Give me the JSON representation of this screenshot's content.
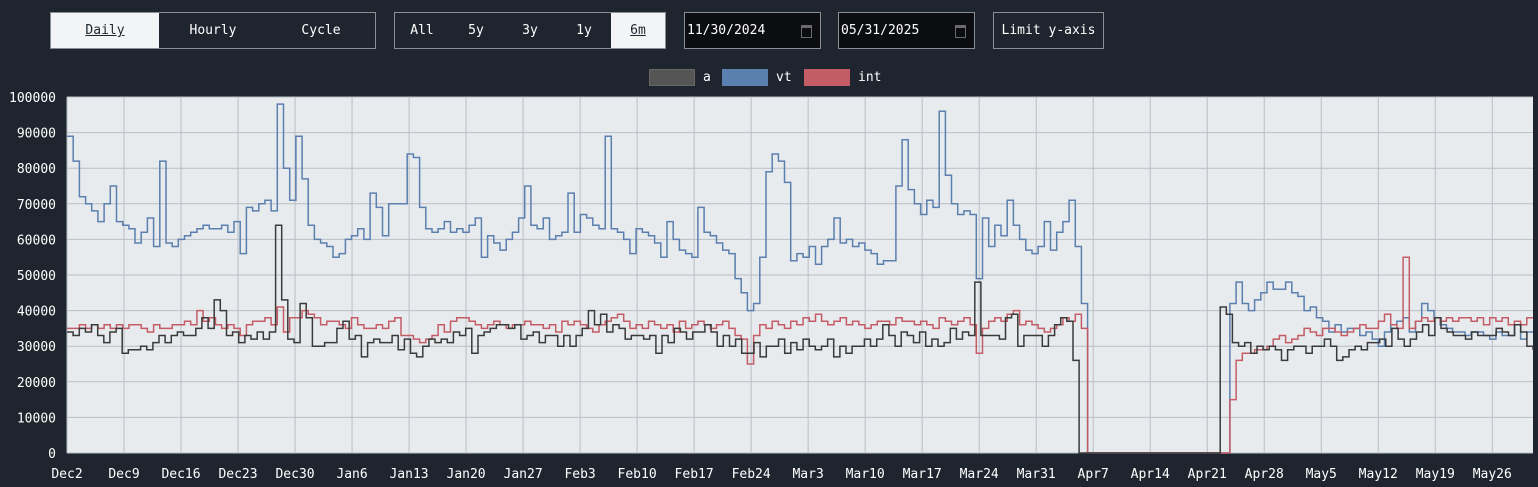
{
  "granularity": {
    "daily": "Daily",
    "hourly": "Hourly",
    "cycle": "Cycle",
    "selected": "Daily"
  },
  "ranges": {
    "all": "All",
    "y5": "5y",
    "y3": "3y",
    "y1": "1y",
    "m6": "6m",
    "selected": "6m"
  },
  "dates": {
    "start": "11/30/2024",
    "end": "05/31/2025"
  },
  "limit_label": "Limit y-axis",
  "colors": {
    "background": "#1e252e",
    "plot": "#e8ebee",
    "a": "#3a3a3a",
    "vt": "#5b7fae",
    "int": "#c45c66"
  },
  "chart_data": {
    "type": "line",
    "step": true,
    "x_start": "2024-12-02",
    "x_end": "2025-05-31",
    "ylim": [
      0,
      100000
    ],
    "yticks": [
      "0",
      "10000",
      "20000",
      "30000",
      "40000",
      "50000",
      "60000",
      "70000",
      "80000",
      "90000",
      "100000"
    ],
    "xticks": [
      {
        "date": "2024-12-02",
        "label": "Dec2"
      },
      {
        "date": "2024-12-09",
        "label": "Dec9"
      },
      {
        "date": "2024-12-16",
        "label": "Dec16"
      },
      {
        "date": "2024-12-23",
        "label": "Dec23"
      },
      {
        "date": "2024-12-30",
        "label": "Dec30"
      },
      {
        "date": "2025-01-06",
        "label": "Jan6"
      },
      {
        "date": "2025-01-13",
        "label": "Jan13"
      },
      {
        "date": "2025-01-20",
        "label": "Jan20"
      },
      {
        "date": "2025-01-27",
        "label": "Jan27"
      },
      {
        "date": "2025-02-03",
        "label": "Feb3"
      },
      {
        "date": "2025-02-10",
        "label": "Feb10"
      },
      {
        "date": "2025-02-17",
        "label": "Feb17"
      },
      {
        "date": "2025-02-24",
        "label": "Feb24"
      },
      {
        "date": "2025-03-03",
        "label": "Mar3"
      },
      {
        "date": "2025-03-10",
        "label": "Mar10"
      },
      {
        "date": "2025-03-17",
        "label": "Mar17"
      },
      {
        "date": "2025-03-24",
        "label": "Mar24"
      },
      {
        "date": "2025-03-31",
        "label": "Mar31"
      },
      {
        "date": "2025-04-07",
        "label": "Apr7"
      },
      {
        "date": "2025-04-14",
        "label": "Apr14"
      },
      {
        "date": "2025-04-21",
        "label": "Apr21"
      },
      {
        "date": "2025-04-28",
        "label": "Apr28"
      },
      {
        "date": "2025-05-05",
        "label": "May5"
      },
      {
        "date": "2025-05-12",
        "label": "May12"
      },
      {
        "date": "2025-05-19",
        "label": "May19"
      },
      {
        "date": "2025-05-26",
        "label": "May26"
      }
    ],
    "series": [
      {
        "name": "a",
        "values": [
          34000,
          33000,
          35000,
          34000,
          36000,
          33000,
          31000,
          34000,
          35000,
          28000,
          29000,
          29000,
          30000,
          29000,
          31000,
          33000,
          31000,
          33000,
          34000,
          33000,
          33000,
          35000,
          38000,
          35000,
          43000,
          40000,
          33000,
          34000,
          31000,
          33000,
          32000,
          34000,
          32000,
          34000,
          64000,
          43000,
          32000,
          31000,
          42000,
          38000,
          30000,
          30000,
          31000,
          31000,
          35000,
          37000,
          32000,
          33000,
          27000,
          31000,
          32000,
          31000,
          31000,
          33000,
          29000,
          32000,
          28000,
          27000,
          30000,
          32000,
          31000,
          32000,
          31000,
          34000,
          33000,
          35000,
          28000,
          33000,
          34000,
          35000,
          36000,
          36000,
          35000,
          36000,
          32000,
          33000,
          34000,
          31000,
          33000,
          33000,
          30000,
          33000,
          30000,
          33000,
          35000,
          40000,
          36000,
          39000,
          34000,
          36000,
          35000,
          32000,
          33000,
          33000,
          32000,
          33000,
          28000,
          33000,
          31000,
          35000,
          34000,
          32000,
          34000,
          34000,
          36000,
          34000,
          30000,
          33000,
          30000,
          32000,
          28000,
          28000,
          31000,
          27000,
          30000,
          30000,
          32000,
          28000,
          31000,
          29000,
          32000,
          30000,
          29000,
          30000,
          32000,
          27000,
          30000,
          28000,
          30000,
          30000,
          32000,
          30000,
          32000,
          36000,
          33000,
          30000,
          34000,
          33000,
          31000,
          34000,
          30000,
          32000,
          30000,
          31000,
          35000,
          32000,
          34000,
          33000,
          48000,
          33000,
          33000,
          33000,
          32000,
          38000,
          39000,
          30000,
          33000,
          33000,
          33000,
          30000,
          33000,
          36000,
          38000,
          37000,
          26000,
          0,
          0,
          0,
          0,
          0,
          0,
          0,
          0,
          0,
          0,
          0,
          0,
          0,
          0,
          0,
          0,
          0,
          0,
          0,
          0,
          0,
          0,
          0,
          41000,
          39000,
          31000,
          30000,
          31000,
          28000,
          30000,
          29000,
          30000,
          29000,
          26000,
          29000,
          30000,
          30000,
          28000,
          30000,
          30000,
          32000,
          30000,
          26000,
          27000,
          29000,
          30000,
          29000,
          31000,
          31000,
          32000,
          30000,
          35000,
          32000,
          30000,
          32000,
          34000,
          36000,
          33000,
          38000,
          35000,
          34000,
          33000,
          33000,
          32000,
          34000,
          33000,
          33000,
          33000,
          35000,
          34000,
          33000,
          36000,
          34000,
          30000,
          29000
        ]
      },
      {
        "name": "vt",
        "values": [
          89000,
          82000,
          72000,
          70000,
          68000,
          65000,
          70000,
          75000,
          65000,
          64000,
          63000,
          59000,
          62000,
          66000,
          58000,
          82000,
          59000,
          58000,
          60000,
          61000,
          62000,
          63000,
          64000,
          63000,
          63000,
          64000,
          62000,
          65000,
          56000,
          69000,
          68000,
          70000,
          71000,
          68000,
          98000,
          80000,
          71000,
          89000,
          77000,
          64000,
          60000,
          59000,
          58000,
          55000,
          56000,
          60000,
          61000,
          63000,
          60000,
          73000,
          69000,
          61000,
          70000,
          70000,
          70000,
          84000,
          83000,
          69000,
          63000,
          62000,
          63000,
          65000,
          62000,
          63000,
          62000,
          64000,
          66000,
          55000,
          61000,
          59000,
          57000,
          60000,
          62000,
          66000,
          75000,
          64000,
          63000,
          66000,
          60000,
          61000,
          62000,
          73000,
          62000,
          67000,
          66000,
          64000,
          63000,
          89000,
          63000,
          62000,
          60000,
          56000,
          63000,
          62000,
          61000,
          59000,
          55000,
          65000,
          60000,
          57000,
          56000,
          55000,
          69000,
          62000,
          61000,
          59000,
          57000,
          56000,
          49000,
          45000,
          40000,
          42000,
          55000,
          79000,
          84000,
          82000,
          76000,
          54000,
          56000,
          55000,
          58000,
          53000,
          58000,
          60000,
          66000,
          59000,
          60000,
          58000,
          59000,
          57000,
          56000,
          53000,
          54000,
          54000,
          75000,
          88000,
          74000,
          70000,
          67000,
          71000,
          69000,
          96000,
          78000,
          70000,
          67000,
          68000,
          67000,
          49000,
          66000,
          58000,
          64000,
          61000,
          71000,
          64000,
          60000,
          57000,
          56000,
          58000,
          65000,
          57000,
          62000,
          65000,
          71000,
          58000,
          42000,
          0,
          0,
          0,
          0,
          0,
          0,
          0,
          0,
          0,
          0,
          0,
          0,
          0,
          0,
          0,
          0,
          0,
          0,
          0,
          0,
          0,
          0,
          0,
          42000,
          48000,
          42000,
          40000,
          43000,
          45000,
          48000,
          46000,
          46000,
          48000,
          45000,
          44000,
          40000,
          41000,
          38000,
          37000,
          34000,
          36000,
          34000,
          35000,
          35000,
          33000,
          34000,
          32000,
          30000,
          34000,
          36000,
          37000,
          38000,
          34000,
          37000,
          42000,
          40000,
          38000,
          36000,
          35000,
          34000,
          34000,
          33000,
          34000,
          34000,
          33000,
          32000,
          34000,
          33000,
          33000,
          36000,
          32000,
          34000,
          34000
        ]
      },
      {
        "name": "int",
        "values": [
          35000,
          35000,
          36000,
          35000,
          36000,
          35000,
          36000,
          35000,
          36000,
          35000,
          36000,
          36000,
          35000,
          34000,
          36000,
          35000,
          35000,
          36000,
          36000,
          37000,
          36000,
          40000,
          37000,
          38000,
          36000,
          35000,
          36000,
          35000,
          33000,
          36000,
          37000,
          37000,
          38000,
          36000,
          41000,
          34000,
          38000,
          38000,
          40000,
          39000,
          38000,
          36000,
          37000,
          37000,
          36000,
          35000,
          38000,
          36000,
          35000,
          35000,
          36000,
          35000,
          37000,
          38000,
          33000,
          33000,
          32000,
          31000,
          32000,
          33000,
          36000,
          34000,
          37000,
          38000,
          38000,
          37000,
          36000,
          35000,
          36000,
          37000,
          36000,
          35000,
          36000,
          36000,
          37000,
          36000,
          36000,
          35000,
          36000,
          34000,
          37000,
          36000,
          37000,
          36000,
          35000,
          34000,
          36000,
          37000,
          38000,
          39000,
          37000,
          35000,
          36000,
          35000,
          37000,
          36000,
          35000,
          36000,
          34000,
          37000,
          35000,
          36000,
          37000,
          36000,
          35000,
          36000,
          37000,
          35000,
          33000,
          32000,
          25000,
          33000,
          36000,
          35000,
          37000,
          36000,
          35000,
          37000,
          36000,
          38000,
          37000,
          39000,
          37000,
          36000,
          37000,
          38000,
          36000,
          37000,
          36000,
          35000,
          36000,
          37000,
          37000,
          36000,
          38000,
          37000,
          37000,
          36000,
          37000,
          36000,
          35000,
          38000,
          37000,
          36000,
          37000,
          38000,
          36000,
          28000,
          35000,
          37000,
          38000,
          37000,
          39000,
          40000,
          36000,
          37000,
          36000,
          35000,
          34000,
          35000,
          36000,
          38000,
          37000,
          39000,
          35000,
          0,
          0,
          0,
          0,
          0,
          0,
          0,
          0,
          0,
          0,
          0,
          0,
          0,
          0,
          0,
          0,
          0,
          0,
          0,
          0,
          0,
          0,
          0,
          15000,
          26000,
          28000,
          28000,
          29000,
          29000,
          30000,
          32000,
          33000,
          31000,
          32000,
          33000,
          35000,
          34000,
          33000,
          35000,
          35000,
          34000,
          33000,
          34000,
          35000,
          36000,
          35000,
          35000,
          37000,
          39000,
          36000,
          35000,
          55000,
          35000,
          37000,
          38000,
          37000,
          38000,
          37000,
          38000,
          37000,
          38000,
          38000,
          37000,
          38000,
          36000,
          38000,
          37000,
          38000,
          36000,
          37000,
          36000,
          38000,
          38000
        ]
      }
    ]
  }
}
